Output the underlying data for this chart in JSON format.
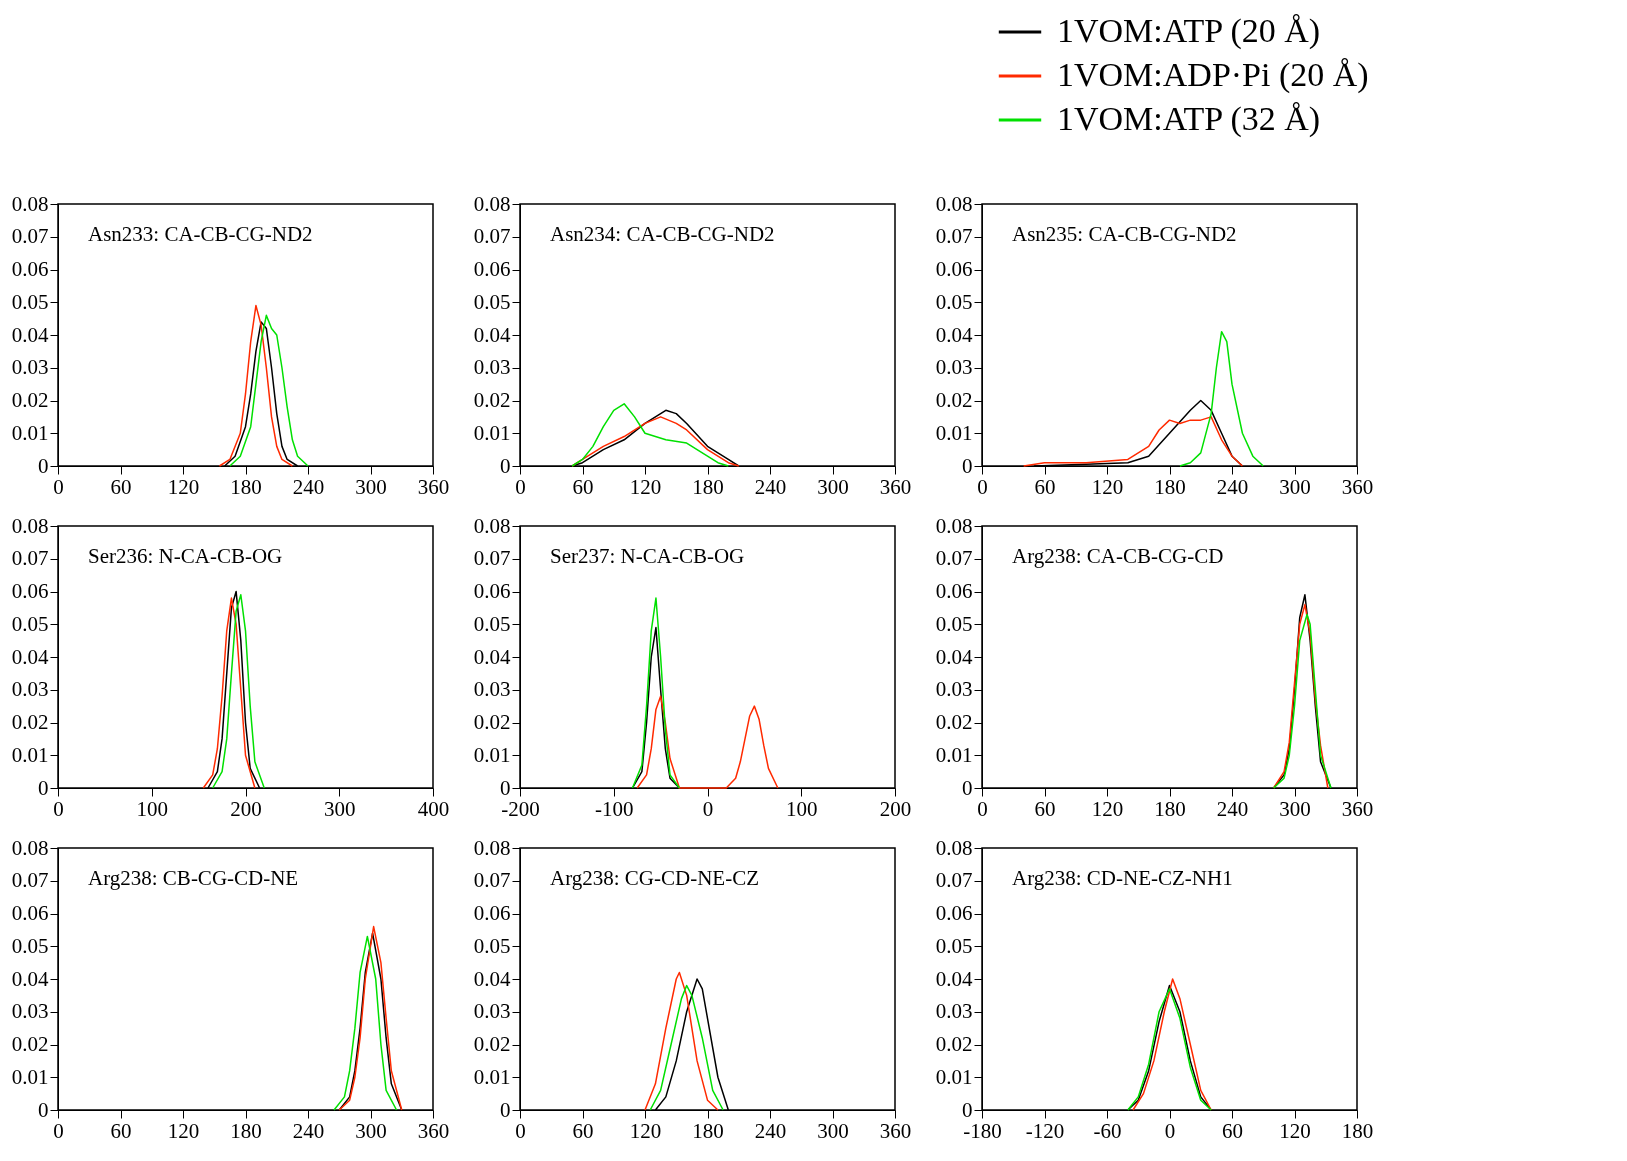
{
  "chart_data": [
    {
      "type": "line",
      "title": "Asn233: CA-CB-CG-ND2",
      "xlim": [
        0,
        360
      ],
      "xticks": [
        0,
        60,
        120,
        180,
        240,
        300,
        360
      ],
      "ylim": [
        0,
        0.08
      ],
      "yticks": [
        0,
        0.01,
        0.02,
        0.03,
        0.04,
        0.05,
        0.06,
        0.07,
        0.08
      ],
      "series": [
        {
          "color": "#000000",
          "x": [
            160,
            170,
            180,
            185,
            190,
            195,
            200,
            205,
            210,
            215,
            220,
            230
          ],
          "values": [
            0,
            0.003,
            0.012,
            0.022,
            0.035,
            0.044,
            0.042,
            0.03,
            0.016,
            0.006,
            0.002,
            0
          ]
        },
        {
          "color": "#ff2a00",
          "x": [
            155,
            165,
            175,
            180,
            185,
            190,
            195,
            200,
            205,
            210,
            215,
            225
          ],
          "values": [
            0,
            0.002,
            0.01,
            0.022,
            0.038,
            0.049,
            0.043,
            0.03,
            0.015,
            0.006,
            0.002,
            0
          ]
        },
        {
          "color": "#00e000",
          "x": [
            165,
            175,
            185,
            190,
            195,
            200,
            205,
            210,
            215,
            220,
            225,
            230,
            240
          ],
          "values": [
            0,
            0.003,
            0.012,
            0.025,
            0.038,
            0.046,
            0.042,
            0.04,
            0.03,
            0.018,
            0.008,
            0.003,
            0
          ]
        }
      ]
    },
    {
      "type": "line",
      "title": "Asn234: CA-CB-CG-ND2",
      "xlim": [
        0,
        360
      ],
      "xticks": [
        0,
        60,
        120,
        180,
        240,
        300,
        360
      ],
      "ylim": [
        0,
        0.08
      ],
      "yticks": [
        0,
        0.01,
        0.02,
        0.03,
        0.04,
        0.05,
        0.06,
        0.07,
        0.08
      ],
      "series": [
        {
          "color": "#000000",
          "x": [
            50,
            60,
            80,
            100,
            120,
            140,
            150,
            160,
            180,
            200,
            210
          ],
          "values": [
            0,
            0.001,
            0.005,
            0.008,
            0.013,
            0.017,
            0.016,
            0.013,
            0.006,
            0.002,
            0
          ]
        },
        {
          "color": "#ff2a00",
          "x": [
            50,
            60,
            80,
            100,
            120,
            135,
            150,
            160,
            180,
            200,
            210
          ],
          "values": [
            0,
            0.002,
            0.006,
            0.009,
            0.013,
            0.015,
            0.013,
            0.011,
            0.005,
            0.001,
            0
          ]
        },
        {
          "color": "#00e000",
          "x": [
            50,
            60,
            70,
            80,
            90,
            100,
            110,
            120,
            140,
            160,
            180,
            190,
            200
          ],
          "values": [
            0,
            0.002,
            0.006,
            0.012,
            0.017,
            0.019,
            0.015,
            0.01,
            0.008,
            0.007,
            0.003,
            0.001,
            0
          ]
        }
      ]
    },
    {
      "type": "line",
      "title": "Asn235: CA-CB-CG-ND2",
      "legend": "top right",
      "xlim": [
        0,
        360
      ],
      "xticks": [
        0,
        60,
        120,
        180,
        240,
        300,
        360
      ],
      "ylim": [
        0,
        0.08
      ],
      "yticks": [
        0,
        0.01,
        0.02,
        0.03,
        0.04,
        0.05,
        0.06,
        0.07,
        0.08
      ],
      "series": [
        {
          "name": "1VOM:ATP (20 Å)",
          "color": "#000000",
          "x": [
            50,
            100,
            140,
            160,
            180,
            200,
            210,
            220,
            230,
            240,
            250
          ],
          "values": [
            0,
            0.0005,
            0.001,
            0.003,
            0.01,
            0.017,
            0.02,
            0.017,
            0.01,
            0.003,
            0
          ]
        },
        {
          "name": "1VOM:ADP·Pi (20 Å)",
          "color": "#ff2a00",
          "x": [
            40,
            60,
            100,
            140,
            160,
            170,
            180,
            190,
            200,
            210,
            220,
            230,
            240,
            250
          ],
          "values": [
            0,
            0.001,
            0.001,
            0.002,
            0.006,
            0.011,
            0.014,
            0.013,
            0.014,
            0.014,
            0.015,
            0.008,
            0.003,
            0
          ]
        },
        {
          "name": "1VOM:ATP (32 Å)",
          "color": "#00e000",
          "x": [
            190,
            200,
            210,
            220,
            225,
            230,
            235,
            240,
            250,
            260,
            270
          ],
          "values": [
            0,
            0.001,
            0.004,
            0.016,
            0.03,
            0.041,
            0.038,
            0.025,
            0.01,
            0.003,
            0
          ]
        }
      ]
    },
    {
      "type": "line",
      "title": "Ser236: N-CA-CB-OG",
      "xlim": [
        0,
        400
      ],
      "xticks": [
        0,
        100,
        200,
        300,
        400
      ],
      "ylim": [
        0,
        0.08
      ],
      "yticks": [
        0,
        0.01,
        0.02,
        0.03,
        0.04,
        0.05,
        0.06,
        0.07,
        0.08
      ],
      "series": [
        {
          "color": "#000000",
          "x": [
            160,
            170,
            175,
            180,
            185,
            190,
            195,
            200,
            205,
            215
          ],
          "values": [
            0,
            0.005,
            0.015,
            0.035,
            0.055,
            0.06,
            0.045,
            0.02,
            0.006,
            0
          ]
        },
        {
          "color": "#ff2a00",
          "x": [
            155,
            165,
            170,
            175,
            180,
            185,
            190,
            195,
            200,
            210
          ],
          "values": [
            0,
            0.004,
            0.012,
            0.028,
            0.048,
            0.058,
            0.05,
            0.03,
            0.01,
            0
          ]
        },
        {
          "color": "#00e000",
          "x": [
            165,
            175,
            180,
            185,
            190,
            195,
            200,
            205,
            210,
            220
          ],
          "values": [
            0,
            0.005,
            0.015,
            0.035,
            0.054,
            0.059,
            0.048,
            0.025,
            0.008,
            0
          ]
        }
      ]
    },
    {
      "type": "line",
      "title": "Ser237: N-CA-CB-OG",
      "xlim": [
        -200,
        200
      ],
      "xticks": [
        -200,
        -100,
        0,
        100,
        200
      ],
      "ylim": [
        0,
        0.08
      ],
      "yticks": [
        0,
        0.01,
        0.02,
        0.03,
        0.04,
        0.05,
        0.06,
        0.07,
        0.08
      ],
      "series": [
        {
          "color": "#000000",
          "x": [
            -80,
            -70,
            -65,
            -60,
            -55,
            -50,
            -45,
            -40,
            -30
          ],
          "values": [
            0,
            0.005,
            0.02,
            0.04,
            0.049,
            0.03,
            0.012,
            0.003,
            0
          ]
        },
        {
          "color": "#ff2a00",
          "x": [
            -75,
            -65,
            -60,
            -55,
            -50,
            -45,
            -40,
            -30,
            20,
            30,
            35,
            40,
            45,
            50,
            55,
            60,
            65,
            75
          ],
          "values": [
            0,
            0.004,
            0.012,
            0.024,
            0.028,
            0.02,
            0.009,
            0,
            0,
            0.003,
            0.008,
            0.015,
            0.022,
            0.025,
            0.021,
            0.013,
            0.006,
            0
          ]
        },
        {
          "color": "#00e000",
          "x": [
            -80,
            -70,
            -65,
            -60,
            -55,
            -50,
            -45,
            -40,
            -30
          ],
          "values": [
            0,
            0.007,
            0.025,
            0.048,
            0.058,
            0.04,
            0.018,
            0.004,
            0
          ]
        }
      ]
    },
    {
      "type": "line",
      "title": "Arg238: CA-CB-CG-CD",
      "xlim": [
        0,
        360
      ],
      "xticks": [
        0,
        60,
        120,
        180,
        240,
        300,
        360
      ],
      "ylim": [
        0,
        0.08
      ],
      "yticks": [
        0,
        0.01,
        0.02,
        0.03,
        0.04,
        0.05,
        0.06,
        0.07,
        0.08
      ],
      "series": [
        {
          "color": "#000000",
          "x": [
            280,
            290,
            295,
            300,
            305,
            310,
            315,
            320,
            325,
            335
          ],
          "values": [
            0,
            0.004,
            0.012,
            0.03,
            0.052,
            0.059,
            0.045,
            0.025,
            0.008,
            0
          ]
        },
        {
          "color": "#ff2a00",
          "x": [
            280,
            290,
            295,
            300,
            305,
            310,
            315,
            320,
            325,
            332
          ],
          "values": [
            0,
            0.005,
            0.014,
            0.032,
            0.05,
            0.056,
            0.047,
            0.027,
            0.013,
            0
          ]
        },
        {
          "color": "#00e000",
          "x": [
            280,
            290,
            295,
            300,
            305,
            312,
            315,
            320,
            325,
            335
          ],
          "values": [
            0,
            0.003,
            0.01,
            0.025,
            0.045,
            0.053,
            0.05,
            0.03,
            0.01,
            0
          ]
        }
      ]
    },
    {
      "type": "line",
      "title": "Arg238: CB-CG-CD-NE",
      "xlim": [
        0,
        360
      ],
      "xticks": [
        0,
        60,
        120,
        180,
        240,
        300,
        360
      ],
      "ylim": [
        0,
        0.08
      ],
      "yticks": [
        0,
        0.01,
        0.02,
        0.03,
        0.04,
        0.05,
        0.06,
        0.07,
        0.08
      ],
      "series": [
        {
          "color": "#000000",
          "x": [
            270,
            280,
            285,
            290,
            295,
            302,
            310,
            315,
            320,
            330
          ],
          "values": [
            0,
            0.004,
            0.012,
            0.025,
            0.042,
            0.054,
            0.04,
            0.022,
            0.008,
            0
          ]
        },
        {
          "color": "#ff2a00",
          "x": [
            270,
            280,
            285,
            290,
            295,
            303,
            310,
            315,
            320,
            330
          ],
          "values": [
            0,
            0.003,
            0.01,
            0.022,
            0.04,
            0.056,
            0.045,
            0.028,
            0.012,
            0
          ]
        },
        {
          "color": "#00e000",
          "x": [
            265,
            275,
            280,
            285,
            290,
            297,
            305,
            310,
            315,
            325
          ],
          "values": [
            0,
            0.004,
            0.012,
            0.025,
            0.042,
            0.053,
            0.04,
            0.02,
            0.006,
            0
          ]
        }
      ]
    },
    {
      "type": "line",
      "title": "Arg238: CG-CD-NE-CZ",
      "xlim": [
        0,
        360
      ],
      "xticks": [
        0,
        60,
        120,
        180,
        240,
        300,
        360
      ],
      "ylim": [
        0,
        0.08
      ],
      "yticks": [
        0,
        0.01,
        0.02,
        0.03,
        0.04,
        0.05,
        0.06,
        0.07,
        0.08
      ],
      "series": [
        {
          "color": "#000000",
          "x": [
            130,
            140,
            150,
            160,
            170,
            175,
            180,
            190,
            200
          ],
          "values": [
            0,
            0.004,
            0.015,
            0.03,
            0.04,
            0.037,
            0.028,
            0.01,
            0
          ]
        },
        {
          "color": "#ff2a00",
          "x": [
            120,
            130,
            140,
            150,
            153,
            160,
            170,
            180,
            190
          ],
          "values": [
            0,
            0.008,
            0.025,
            0.04,
            0.042,
            0.035,
            0.015,
            0.003,
            0
          ]
        },
        {
          "color": "#00e000",
          "x": [
            125,
            135,
            145,
            155,
            160,
            165,
            175,
            185,
            195
          ],
          "values": [
            0,
            0.006,
            0.02,
            0.034,
            0.038,
            0.035,
            0.022,
            0.006,
            0
          ]
        }
      ]
    },
    {
      "type": "line",
      "title": "Arg238: CD-NE-CZ-NH1",
      "xlim": [
        -180,
        180
      ],
      "xticks": [
        -180,
        -120,
        -60,
        0,
        60,
        120,
        180
      ],
      "ylim": [
        0,
        0.08
      ],
      "yticks": [
        0,
        0.01,
        0.02,
        0.03,
        0.04,
        0.05,
        0.06,
        0.07,
        0.08
      ],
      "series": [
        {
          "color": "#000000",
          "x": [
            -40,
            -30,
            -20,
            -10,
            0,
            10,
            20,
            30,
            40
          ],
          "values": [
            0,
            0.003,
            0.012,
            0.027,
            0.038,
            0.03,
            0.015,
            0.004,
            0
          ]
        },
        {
          "color": "#ff2a00",
          "x": [
            -35,
            -25,
            -15,
            -5,
            3,
            10,
            20,
            30,
            40
          ],
          "values": [
            0,
            0.005,
            0.015,
            0.03,
            0.04,
            0.034,
            0.02,
            0.006,
            0
          ]
        },
        {
          "color": "#00e000",
          "x": [
            -40,
            -30,
            -20,
            -10,
            0,
            10,
            20,
            30,
            40
          ],
          "values": [
            0,
            0.004,
            0.014,
            0.03,
            0.037,
            0.028,
            0.013,
            0.003,
            0
          ]
        }
      ]
    }
  ]
}
